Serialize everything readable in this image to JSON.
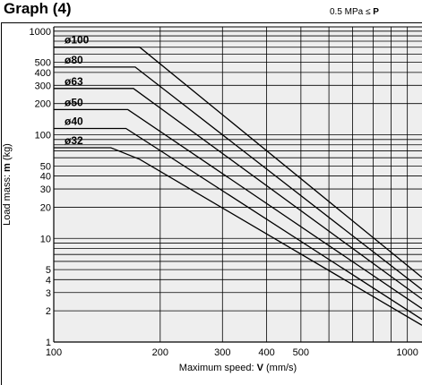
{
  "header": {
    "title": "Graph (4)",
    "condition_prefix": "0.5 MPa ≤ ",
    "condition_bold": "P"
  },
  "chart_data": {
    "type": "line",
    "xlabel_prefix": "Maximum speed: ",
    "xlabel_bold": "V",
    "xlabel_suffix": " (mm/s)",
    "ylabel_prefix": "Load mass: ",
    "ylabel_bold": "m",
    "ylabel_suffix": " (kg)",
    "x_scale": "log",
    "y_scale": "log",
    "xlim": [
      100,
      1100
    ],
    "ylim": [
      1,
      1100
    ],
    "x_ticks": [
      100,
      200,
      300,
      400,
      500,
      1000
    ],
    "x_tick_labels": [
      "100",
      "200",
      "300",
      "400",
      "500",
      "1000"
    ],
    "y_ticks": [
      1,
      2,
      3,
      4,
      5,
      10,
      20,
      30,
      40,
      50,
      100,
      200,
      300,
      400,
      500,
      1000
    ],
    "y_tick_labels": [
      "1",
      "2",
      "3",
      "4",
      "5",
      "10",
      "20",
      "30",
      "40",
      "50",
      "100",
      "200",
      "300",
      "400",
      "500",
      "1000"
    ],
    "grid": true,
    "series": [
      {
        "name": "ø100",
        "points": [
          [
            100,
            700
          ],
          [
            175,
            700
          ],
          [
            1100,
            4.2
          ]
        ]
      },
      {
        "name": "ø80",
        "points": [
          [
            100,
            450
          ],
          [
            170,
            450
          ],
          [
            1100,
            3.2
          ]
        ]
      },
      {
        "name": "ø63",
        "points": [
          [
            100,
            280
          ],
          [
            168,
            280
          ],
          [
            1100,
            2.6
          ]
        ]
      },
      {
        "name": "ø50",
        "points": [
          [
            100,
            175
          ],
          [
            162,
            175
          ],
          [
            1100,
            2.1
          ]
        ]
      },
      {
        "name": "ø40",
        "points": [
          [
            100,
            115
          ],
          [
            160,
            115
          ],
          [
            1100,
            1.65
          ]
        ]
      },
      {
        "name": "ø32",
        "points": [
          [
            100,
            75
          ],
          [
            145,
            75
          ],
          [
            175,
            58
          ],
          [
            1100,
            1.45
          ]
        ]
      }
    ]
  }
}
